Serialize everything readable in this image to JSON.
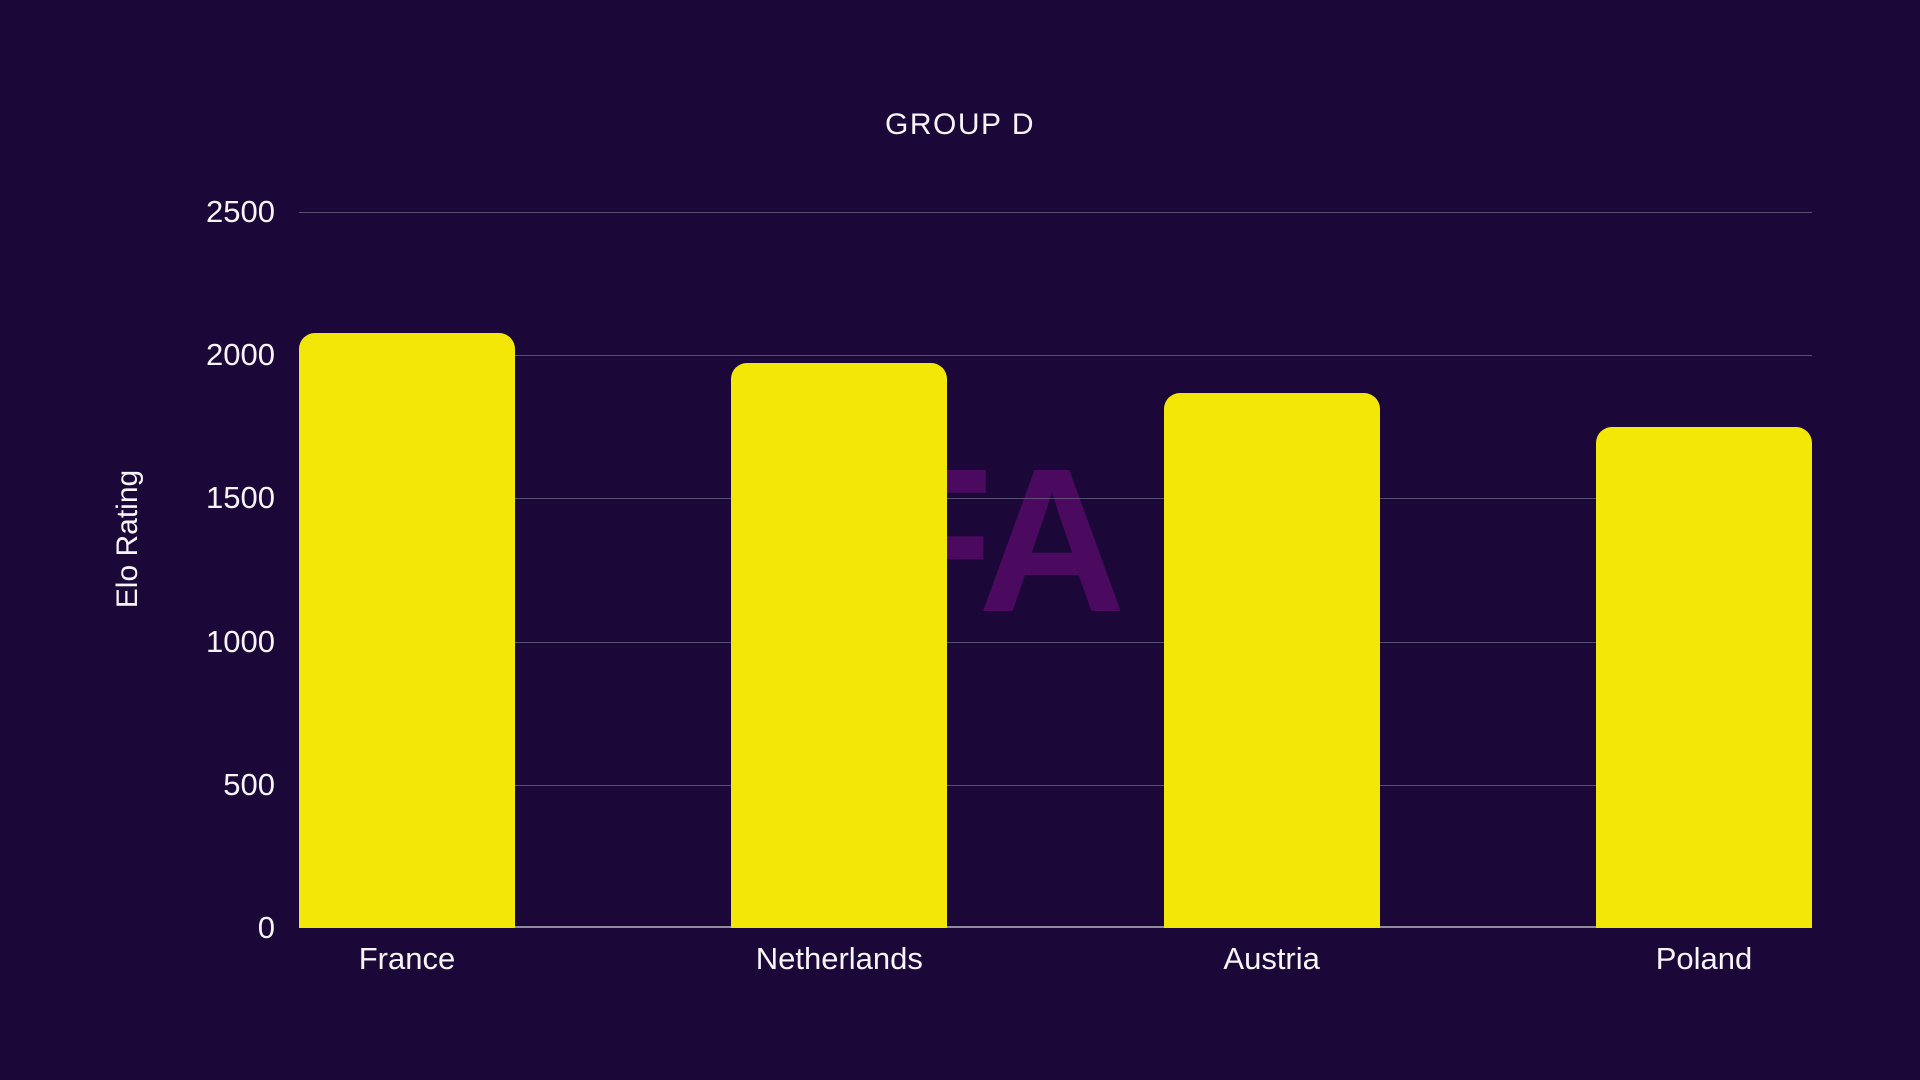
{
  "title": "GROUP D",
  "watermark_text": "FA",
  "y_axis": {
    "label": "Elo Rating",
    "tick_labels": [
      "0",
      "500",
      "1000",
      "1500",
      "2000",
      "2500"
    ]
  },
  "x_axis": {
    "labels": [
      "France",
      "Netherlands",
      "Austria",
      "Poland"
    ]
  },
  "chart_data": {
    "type": "bar",
    "title": "GROUP D",
    "xlabel": "",
    "ylabel": "Elo Rating",
    "categories": [
      "France",
      "Netherlands",
      "Austria",
      "Poland"
    ],
    "values": [
      2078,
      1973,
      1867,
      1748
    ],
    "ylim": [
      0,
      2500
    ],
    "yticks": [
      0,
      500,
      1000,
      1500,
      2000,
      2500
    ],
    "grid": "horizontal",
    "legend": "none",
    "bar_color": "#f2e706",
    "watermark": "FA"
  },
  "colors": {
    "background": "#1c0838",
    "bar": "#f2e706",
    "text": "#f7f5fa",
    "gridline": "#6b6480",
    "axis_line": "#8f8a9e",
    "watermark": "#4b0a5f"
  }
}
